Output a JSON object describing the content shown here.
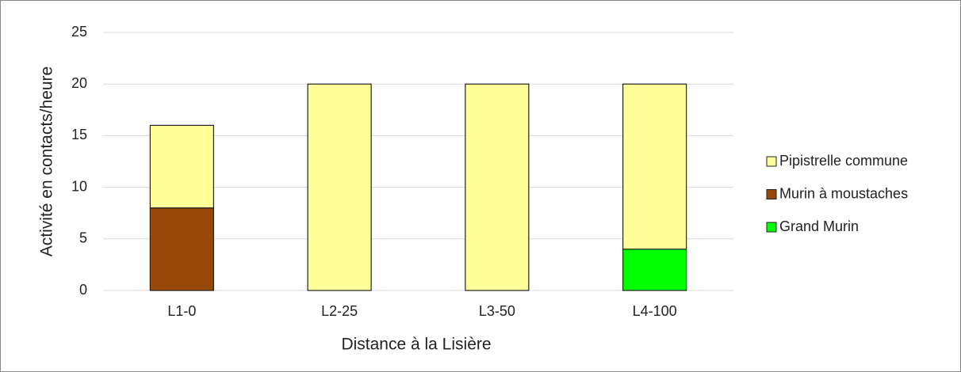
{
  "chart_data": {
    "type": "stacked_bar",
    "x_label": "Distance à la Lisière",
    "y_label": "Activité en contacts/heure",
    "categories": [
      "L1-0",
      "L2-25",
      "L3-50",
      "L4-100"
    ],
    "series": [
      {
        "name": "Grand Murin",
        "color": "#00ff00",
        "values": [
          0,
          0,
          0,
          4
        ]
      },
      {
        "name": "Murin à moustaches",
        "color": "#984807",
        "values": [
          8,
          0,
          0,
          0
        ]
      },
      {
        "name": "Pipistrelle commune",
        "color": "#ffff99",
        "values": [
          8,
          20,
          20,
          16
        ]
      }
    ],
    "ylim": [
      0,
      25
    ],
    "yticks": [
      0,
      5,
      10,
      15,
      20,
      25
    ],
    "grid": true,
    "legend": "right"
  }
}
